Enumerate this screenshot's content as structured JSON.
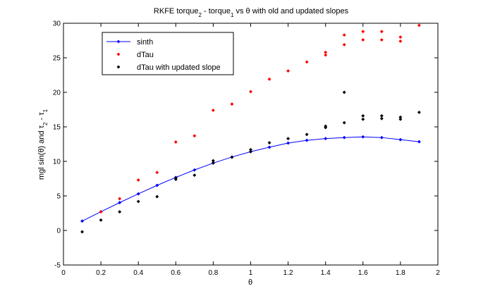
{
  "chart_data": {
    "type": "scatter",
    "title": {
      "parts": [
        {
          "text": "RKFE torque",
          "baseline": "normal"
        },
        {
          "text": "2",
          "baseline": "sub"
        },
        {
          "text": " - torque",
          "baseline": "normal"
        },
        {
          "text": "1",
          "baseline": "sub"
        },
        {
          "text": " vs ",
          "baseline": "normal"
        },
        {
          "text": "θ",
          "baseline": "normal"
        },
        {
          "text": " with old and updated slopes",
          "baseline": "normal"
        }
      ]
    },
    "xlabel": "θ",
    "ylabel": {
      "parts": [
        {
          "text": "mgl sin(θ) and τ",
          "baseline": "normal"
        },
        {
          "text": "2",
          "baseline": "sub"
        },
        {
          "text": " - τ",
          "baseline": "normal"
        },
        {
          "text": "1",
          "baseline": "sub"
        }
      ]
    },
    "xlim": [
      0,
      2
    ],
    "ylim": [
      -5,
      30
    ],
    "xticks": [
      0,
      0.2,
      0.4,
      0.6,
      0.8,
      1,
      1.2,
      1.4,
      1.6,
      1.8,
      2
    ],
    "xtick_labels": [
      "0",
      "0.2",
      "0.4",
      "0.6",
      "0.8",
      "1",
      "1.2",
      "1.4",
      "1.6",
      "1.8",
      "2"
    ],
    "yticks": [
      -5,
      0,
      5,
      10,
      15,
      20,
      25,
      30
    ],
    "ytick_labels": [
      "-5",
      "0",
      "5",
      "10",
      "15",
      "20",
      "25",
      "30"
    ],
    "grid": false,
    "legend_position": "top-left",
    "series": [
      {
        "name": "sinth",
        "style": "line-markers",
        "color": "#0000ff",
        "x": [
          0.1,
          0.2,
          0.3,
          0.4,
          0.5,
          0.6,
          0.7,
          0.8,
          0.9,
          1.0,
          1.1,
          1.2,
          1.3,
          1.4,
          1.5,
          1.6,
          1.7,
          1.8,
          1.9
        ],
        "y": [
          1.36,
          2.71,
          4.03,
          5.3,
          6.53,
          7.68,
          8.76,
          9.75,
          10.63,
          11.4,
          12.05,
          12.65,
          13.05,
          13.3,
          13.45,
          13.55,
          13.45,
          13.15,
          12.85
        ]
      },
      {
        "name": "dTau",
        "style": "markers",
        "color": "#ff0000",
        "x": [
          0.2,
          0.3,
          0.4,
          0.5,
          0.6,
          0.7,
          0.8,
          0.9,
          1.0,
          1.1,
          1.2,
          1.3,
          1.4,
          1.4,
          1.5,
          1.5,
          1.6,
          1.6,
          1.7,
          1.7,
          1.8,
          1.8,
          1.9
        ],
        "y": [
          2.7,
          4.6,
          7.3,
          8.4,
          12.8,
          13.7,
          17.4,
          18.3,
          20.1,
          21.9,
          23.1,
          24.4,
          25.4,
          25.8,
          26.9,
          28.3,
          27.6,
          28.8,
          27.6,
          28.8,
          27.4,
          28.0,
          29.7
        ]
      },
      {
        "name": "dTau with updated slope",
        "style": "markers",
        "color": "#000000",
        "x": [
          0.1,
          0.2,
          0.3,
          0.4,
          0.5,
          0.6,
          0.6,
          0.7,
          0.8,
          0.8,
          0.9,
          1.0,
          1.0,
          1.1,
          1.2,
          1.3,
          1.4,
          1.4,
          1.5,
          1.5,
          1.6,
          1.6,
          1.7,
          1.7,
          1.8,
          1.8,
          1.9
        ],
        "y": [
          -0.2,
          1.5,
          2.7,
          4.2,
          4.9,
          7.4,
          7.6,
          8.0,
          9.8,
          10.1,
          10.6,
          11.4,
          11.7,
          12.7,
          13.3,
          13.9,
          14.9,
          15.1,
          15.6,
          20.0,
          16.1,
          16.6,
          16.2,
          16.6,
          16.1,
          16.4,
          17.1
        ]
      }
    ]
  }
}
